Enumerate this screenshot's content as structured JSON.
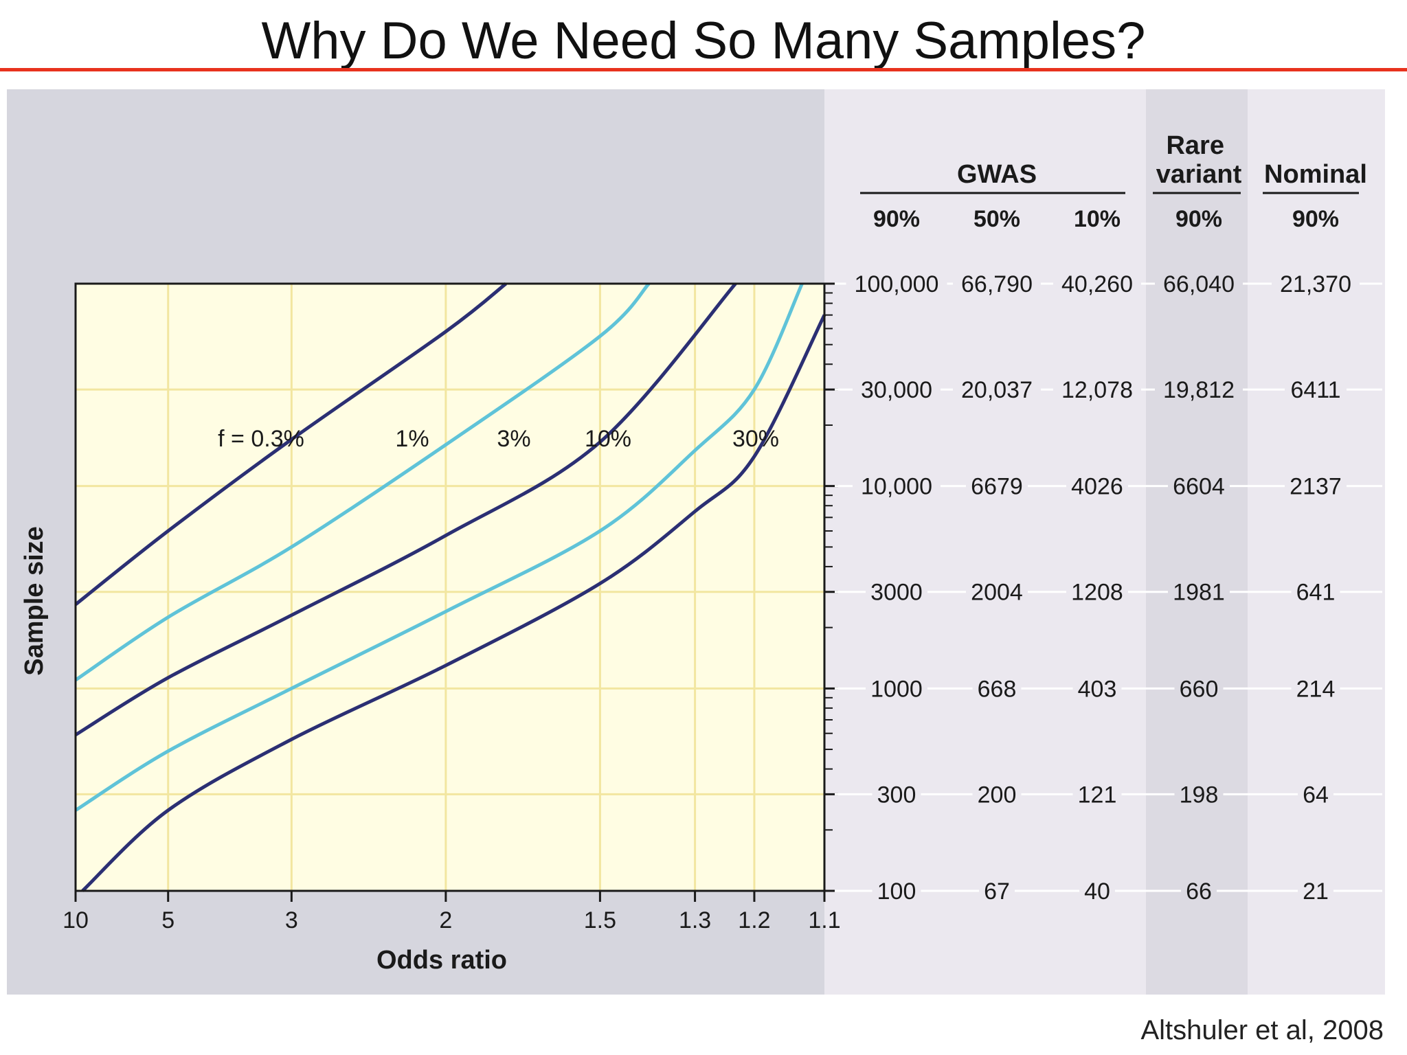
{
  "slide": {
    "title": "Why Do We Need So Many Samples?",
    "citation": "Altshuler et al, 2008"
  },
  "colors": {
    "title_rule": "#e8321e",
    "panel_left": "#d6d6de",
    "panel_right": "#ebe8ef",
    "rare_column": "#dcdae2",
    "plot_bg": "#fffde3",
    "grid": "#f2e6a0",
    "dark_curve": "#2b2f73",
    "light_curve": "#5fc3d8"
  },
  "chart_data": {
    "type": "line",
    "title": "",
    "xlabel": "Odds ratio",
    "ylabel": "Sample size",
    "x_scale": "reciprocal",
    "y_scale": "log",
    "xlim": [
      10,
      1.1
    ],
    "ylim": [
      100,
      100000
    ],
    "x_ticks": [
      10,
      5,
      3,
      2,
      1.5,
      1.3,
      1.2,
      1.1
    ],
    "x_tick_labels": [
      "10",
      "5",
      "3",
      "2",
      "1.5",
      "1.3",
      "1.2",
      "1.1"
    ],
    "y_ticks": [
      100,
      300,
      1000,
      3000,
      10000,
      30000,
      100000
    ],
    "grid": true,
    "series": [
      {
        "name": "f = 0.3%",
        "label": "f = 0.3%",
        "color_key": "dark_curve",
        "points": [
          [
            10,
            2600
          ],
          [
            5,
            6000
          ],
          [
            3,
            17000
          ],
          [
            2,
            58000
          ],
          [
            1.77,
            100000
          ]
        ]
      },
      {
        "name": "1%",
        "label": "1%",
        "color_key": "light_curve",
        "points": [
          [
            10,
            1100
          ],
          [
            5,
            2250
          ],
          [
            3,
            5000
          ],
          [
            2,
            16000
          ],
          [
            1.5,
            55000
          ],
          [
            1.39,
            100000
          ]
        ]
      },
      {
        "name": "3%",
        "label": "3%",
        "color_key": "dark_curve",
        "points": [
          [
            10,
            590
          ],
          [
            5,
            1130
          ],
          [
            3,
            2300
          ],
          [
            2,
            5700
          ],
          [
            1.5,
            16500
          ],
          [
            1.23,
            100000
          ]
        ]
      },
      {
        "name": "10%",
        "label": "10%",
        "color_key": "light_curve",
        "points": [
          [
            10,
            250
          ],
          [
            5,
            490
          ],
          [
            3,
            1000
          ],
          [
            2,
            2400
          ],
          [
            1.5,
            6000
          ],
          [
            1.3,
            15000
          ],
          [
            1.2,
            30000
          ],
          [
            1.13,
            100000
          ]
        ]
      },
      {
        "name": "30%",
        "label": "30%",
        "color_key": "dark_curve",
        "points": [
          [
            9.3,
            100
          ],
          [
            5,
            250
          ],
          [
            3,
            560
          ],
          [
            2,
            1300
          ],
          [
            1.5,
            3300
          ],
          [
            1.3,
            7500
          ],
          [
            1.2,
            14000
          ],
          [
            1.1,
            70000
          ]
        ]
      }
    ]
  },
  "table": {
    "group_headers": [
      {
        "label": "GWAS"
      },
      {
        "label": "Rare variant"
      },
      {
        "label": "Nominal"
      }
    ],
    "power_headers": [
      "90%",
      "50%",
      "10%",
      "90%",
      "90%"
    ],
    "rows": [
      [
        "100,000",
        "66,790",
        "40,260",
        "66,040",
        "21,370"
      ],
      [
        "30,000",
        "20,037",
        "12,078",
        "19,812",
        "6411"
      ],
      [
        "10,000",
        "6679",
        "4026",
        "6604",
        "2137"
      ],
      [
        "3000",
        "2004",
        "1208",
        "1981",
        "641"
      ],
      [
        "1000",
        "668",
        "403",
        "660",
        "214"
      ],
      [
        "300",
        "200",
        "121",
        "198",
        "64"
      ],
      [
        "100",
        "67",
        "40",
        "66",
        "21"
      ]
    ]
  }
}
